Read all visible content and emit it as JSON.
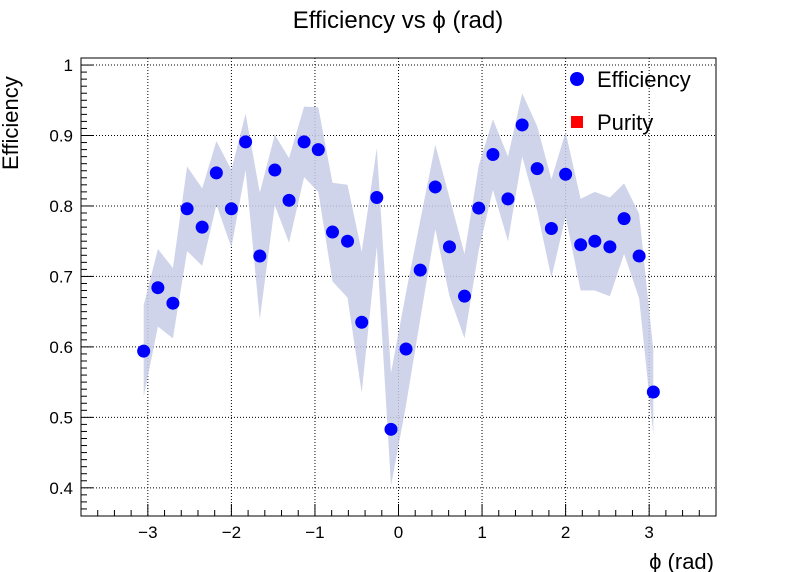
{
  "chart_data": {
    "type": "scatter",
    "title": "Efficiency vs ϕ (rad)",
    "xlabel": "ϕ (rad)",
    "ylabel": "Efficiency",
    "xlim": [
      -3.8,
      3.8
    ],
    "ylim": [
      0.36,
      1.01
    ],
    "xticks": [
      -3,
      -2,
      -1,
      0,
      1,
      2,
      3
    ],
    "xtick_labels": [
      "−3",
      "−2",
      "−1",
      "0",
      "1",
      "2",
      "3"
    ],
    "yticks": [
      0.4,
      0.5,
      0.6,
      0.7,
      0.8,
      0.9,
      1.0
    ],
    "ytick_labels": [
      "0.4",
      "0.5",
      "0.6",
      "0.7",
      "0.8",
      "0.9",
      "1"
    ],
    "grid": true,
    "legend_position": "top-right",
    "series": [
      {
        "name": "Efficiency",
        "color": "#0000ff",
        "marker": "circle",
        "band_color": "#c8cce6",
        "x": [
          -3.05,
          -2.88,
          -2.7,
          -2.53,
          -2.35,
          -2.18,
          -2.0,
          -1.83,
          -1.66,
          -1.48,
          -1.31,
          -1.13,
          -0.96,
          -0.79,
          -0.61,
          -0.44,
          -0.26,
          -0.09,
          0.09,
          0.26,
          0.44,
          0.61,
          0.79,
          0.96,
          1.13,
          1.31,
          1.48,
          1.66,
          1.83,
          2.0,
          2.18,
          2.35,
          2.53,
          2.7,
          2.88,
          3.05
        ],
        "y": [
          0.594,
          0.684,
          0.662,
          0.796,
          0.77,
          0.847,
          0.796,
          0.891,
          0.729,
          0.851,
          0.808,
          0.891,
          0.88,
          0.763,
          0.75,
          0.635,
          0.812,
          0.483,
          0.597,
          0.709,
          0.827,
          0.742,
          0.672,
          0.797,
          0.873,
          0.81,
          0.915,
          0.853,
          0.768,
          0.845,
          0.745,
          0.75,
          0.742,
          0.782,
          0.729,
          0.536
        ],
        "err": [
          0.065,
          0.055,
          0.05,
          0.06,
          0.055,
          0.045,
          0.055,
          0.04,
          0.09,
          0.05,
          0.06,
          0.05,
          0.06,
          0.07,
          0.08,
          0.1,
          0.07,
          0.08,
          0.08,
          0.07,
          0.06,
          0.07,
          0.06,
          0.06,
          0.05,
          0.06,
          0.045,
          0.06,
          0.07,
          0.06,
          0.065,
          0.07,
          0.07,
          0.05,
          0.06,
          0.06
        ]
      },
      {
        "name": "Purity",
        "color": "#ff0000",
        "marker": "square",
        "x": [],
        "y": []
      }
    ]
  }
}
